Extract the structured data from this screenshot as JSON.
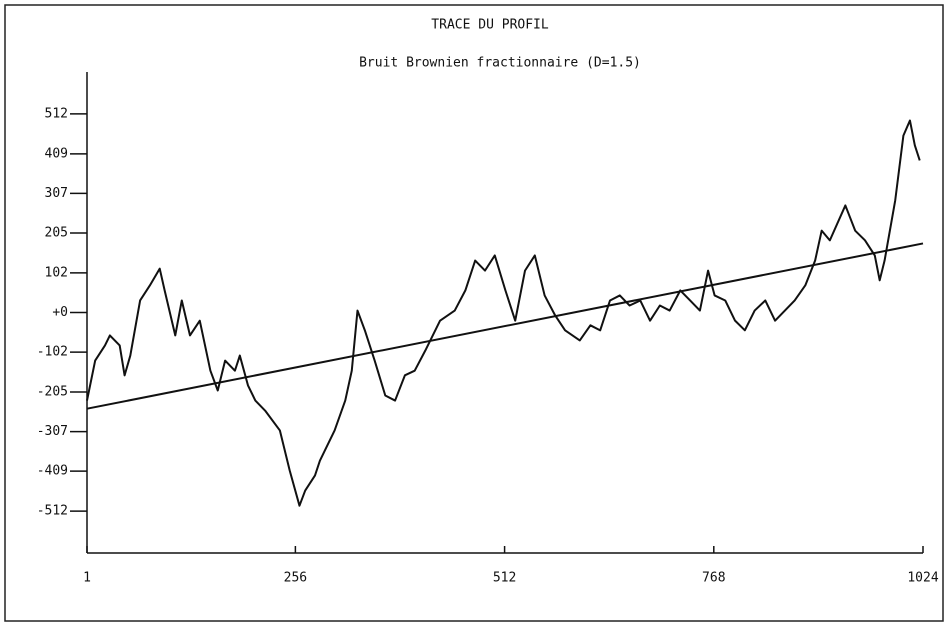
{
  "chart_data": {
    "type": "line",
    "title": "TRACE DU PROFIL",
    "subtitle": "Bruit Brownien fractionnaire (D=1.5)",
    "xlim": [
      1,
      1024
    ],
    "xticks": [
      1,
      256,
      512,
      768,
      1024
    ],
    "ylim": [
      -620,
      620
    ],
    "yticks": [
      512,
      409,
      307,
      205,
      102,
      {
        "value": 0,
        "label": "+0"
      },
      -102,
      -205,
      -307,
      -409,
      -512
    ],
    "series": [
      {
        "color": "#111111",
        "x": [
          1,
          11,
          23,
          29,
          41,
          47,
          54,
          66,
          78,
          90,
          96,
          109,
          117,
          127,
          139,
          152,
          161,
          170,
          182,
          188,
          198,
          207,
          219,
          237,
          249,
          261,
          268,
          280,
          286,
          304,
          317,
          325,
          332,
          341,
          353,
          366,
          378,
          390,
          402,
          415,
          433,
          451,
          464,
          476,
          488,
          500,
          513,
          525,
          537,
          549,
          561,
          574,
          586,
          604,
          617,
          629,
          641,
          653,
          665,
          678,
          690,
          702,
          714,
          727,
          739,
          751,
          761,
          769,
          782,
          794,
          806,
          818,
          831,
          843,
          855,
          867,
          880,
          892,
          900,
          910,
          929,
          941,
          953,
          965,
          971,
          977,
          990,
          1000,
          1008,
          1014,
          1020
        ],
        "values": [
          -227,
          -124,
          -85,
          -59,
          -85,
          -162,
          -111,
          31,
          70,
          113,
          57,
          -59,
          31,
          -59,
          -21,
          -150,
          -201,
          -124,
          -150,
          -111,
          -188,
          -227,
          -253,
          -304,
          -407,
          -498,
          -459,
          -420,
          -382,
          -304,
          -227,
          -150,
          5,
          -46,
          -124,
          -214,
          -227,
          -162,
          -150,
          -98,
          -21,
          5,
          57,
          134,
          108,
          147,
          57,
          -21,
          108,
          147,
          44,
          -8,
          -46,
          -72,
          -33,
          -46,
          31,
          44,
          18,
          31,
          -21,
          18,
          5,
          57,
          31,
          5,
          108,
          44,
          31,
          -21,
          -46,
          5,
          31,
          -21,
          5,
          31,
          70,
          134,
          211,
          186,
          276,
          211,
          186,
          147,
          83,
          134,
          289,
          456,
          495,
          431,
          392
        ]
      },
      {
        "color": "#111111",
        "x": [
          1,
          1024
        ],
        "values": [
          -248,
          178
        ]
      }
    ]
  }
}
